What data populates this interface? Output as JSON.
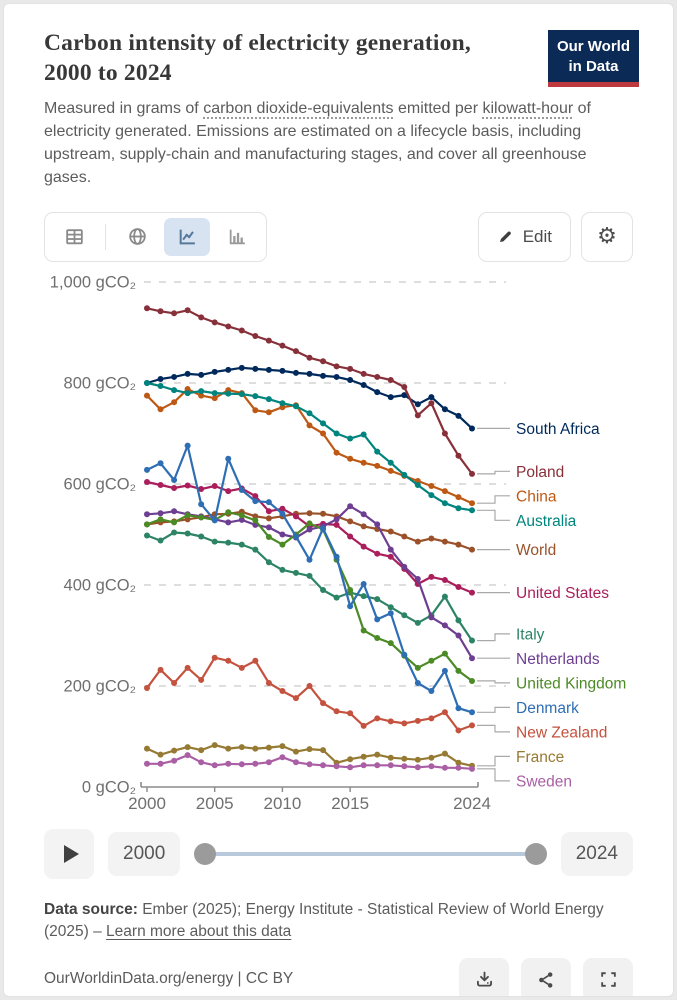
{
  "header": {
    "title": "Carbon intensity of electricity generation, 2000 to 2024",
    "subtitle_parts": [
      {
        "text": "Measured in grams of ",
        "dotted": false
      },
      {
        "text": "carbon dioxide-equivalents",
        "dotted": true
      },
      {
        "text": " emitted per ",
        "dotted": false
      },
      {
        "text": "kilowatt-hour",
        "dotted": true
      },
      {
        "text": " of electricity generated. Emissions are estimated on a lifecycle basis, including upstream, supply-chain and manufacturing stages, and cover all greenhouse gases.",
        "dotted": false
      }
    ],
    "logo": {
      "line1": "Our World",
      "line2": "in Data",
      "bg_color": "#0b2a56",
      "accent_color": "#bf3a3e"
    }
  },
  "toolbar": {
    "tabs": [
      {
        "name": "table",
        "icon": "table-icon",
        "selected": false
      },
      {
        "name": "map",
        "icon": "globe-icon",
        "selected": false
      },
      {
        "name": "line-chart",
        "icon": "line-chart-icon",
        "selected": true
      },
      {
        "name": "bar-chart",
        "icon": "bar-chart-icon",
        "selected": false
      }
    ],
    "selected_bg": "#d7e3f1",
    "edit_label": "Edit"
  },
  "chart_data": {
    "type": "line",
    "title": "Carbon intensity of electricity generation",
    "unit": "gCO2 per kilowatt-hour",
    "xlim": [
      2000,
      2024
    ],
    "ylim": [
      0,
      1000
    ],
    "grid": true,
    "legend_position": "right-end-labels",
    "y_ticks": [
      {
        "value": 0,
        "label": "0 gCO₂"
      },
      {
        "value": 200,
        "label": "200 gCO₂"
      },
      {
        "value": 400,
        "label": "400 gCO₂"
      },
      {
        "value": 600,
        "label": "600 gCO₂"
      },
      {
        "value": 800,
        "label": "800 gCO₂"
      },
      {
        "value": 1000,
        "label": "1,000 gCO₂"
      }
    ],
    "x_ticks": [
      {
        "year": 2000,
        "label": "2000",
        "tick": true
      },
      {
        "year": 2005,
        "label": "2005",
        "tick": true
      },
      {
        "year": 2010,
        "label": "2010",
        "tick": true
      },
      {
        "year": 2015,
        "label": "2015",
        "tick": true
      },
      {
        "year": 2024,
        "label": "2024",
        "tick": false
      }
    ],
    "years": [
      2000,
      2001,
      2002,
      2003,
      2004,
      2005,
      2006,
      2007,
      2008,
      2009,
      2010,
      2011,
      2012,
      2013,
      2014,
      2015,
      2016,
      2017,
      2018,
      2019,
      2020,
      2021,
      2022,
      2023,
      2024
    ],
    "series": [
      {
        "name": "South Africa",
        "color": "#00295B",
        "values": [
          800,
          808,
          812,
          818,
          816,
          822,
          826,
          830,
          828,
          826,
          824,
          820,
          818,
          814,
          812,
          806,
          796,
          782,
          772,
          776,
          758,
          772,
          748,
          735,
          710
        ]
      },
      {
        "name": "Poland",
        "color": "#883039",
        "values": [
          948,
          942,
          938,
          944,
          930,
          920,
          912,
          904,
          893,
          884,
          874,
          863,
          850,
          843,
          833,
          828,
          818,
          812,
          806,
          792,
          736,
          760,
          700,
          656,
          620
        ]
      },
      {
        "name": "China",
        "color": "#BE5915",
        "values": [
          775,
          748,
          762,
          788,
          775,
          770,
          786,
          780,
          746,
          742,
          752,
          756,
          716,
          700,
          662,
          650,
          642,
          636,
          626,
          616,
          606,
          596,
          586,
          574,
          562
        ]
      },
      {
        "name": "Australia",
        "color": "#00847E",
        "values": [
          800,
          794,
          786,
          780,
          784,
          780,
          779,
          778,
          774,
          768,
          760,
          754,
          740,
          720,
          700,
          690,
          698,
          664,
          642,
          618,
          598,
          578,
          562,
          552,
          548
        ]
      },
      {
        "name": "World",
        "color": "#9A5129",
        "values": [
          520,
          524,
          526,
          530,
          534,
          540,
          541,
          545,
          536,
          532,
          536,
          541,
          542,
          541,
          536,
          526,
          516,
          511,
          506,
          496,
          486,
          492,
          486,
          480,
          470
        ]
      },
      {
        "name": "United States",
        "color": "#A91E5B",
        "values": [
          604,
          598,
          592,
          597,
          590,
          596,
          586,
          591,
          576,
          546,
          551,
          536,
          516,
          521,
          519,
          496,
          476,
          462,
          456,
          432,
          402,
          416,
          410,
          396,
          385
        ]
      },
      {
        "name": "Italy",
        "color": "#2C8465",
        "values": [
          498,
          488,
          504,
          502,
          496,
          486,
          484,
          480,
          470,
          445,
          430,
          424,
          418,
          390,
          375,
          385,
          378,
          372,
          356,
          340,
          325,
          340,
          377,
          330,
          290
        ]
      },
      {
        "name": "Netherlands",
        "color": "#6D3E91",
        "values": [
          540,
          542,
          546,
          540,
          536,
          530,
          524,
          529,
          519,
          514,
          500,
          494,
          510,
          516,
          530,
          556,
          540,
          520,
          470,
          436,
          412,
          336,
          320,
          300,
          255
        ]
      },
      {
        "name": "United Kingdom",
        "color": "#4C8A26",
        "values": [
          520,
          530,
          524,
          538,
          534,
          529,
          544,
          538,
          528,
          495,
          480,
          500,
          522,
          510,
          450,
          390,
          310,
          295,
          285,
          260,
          236,
          250,
          264,
          230,
          210
        ]
      },
      {
        "name": "Denmark",
        "color": "#2E6EB5",
        "values": [
          628,
          641,
          608,
          676,
          560,
          528,
          650,
          588,
          566,
          564,
          541,
          496,
          450,
          512,
          456,
          358,
          402,
          332,
          344,
          262,
          206,
          190,
          230,
          156,
          148
        ]
      },
      {
        "name": "New Zealand",
        "color": "#C4523E",
        "values": [
          196,
          232,
          206,
          236,
          212,
          256,
          250,
          236,
          250,
          206,
          190,
          176,
          200,
          166,
          150,
          146,
          121,
          136,
          130,
          126,
          131,
          136,
          148,
          112,
          122
        ]
      },
      {
        "name": "France",
        "color": "#967A33",
        "values": [
          76,
          64,
          72,
          79,
          73,
          83,
          76,
          79,
          76,
          78,
          81,
          70,
          75,
          73,
          48,
          55,
          60,
          64,
          58,
          56,
          54,
          58,
          66,
          48,
          42
        ]
      },
      {
        "name": "Sweden",
        "color": "#AA5FA5",
        "values": [
          46,
          46,
          52,
          63,
          49,
          43,
          46,
          45,
          46,
          49,
          59,
          49,
          45,
          43,
          41,
          39,
          43,
          43,
          43,
          41,
          39,
          41,
          38,
          38,
          36
        ]
      }
    ]
  },
  "timeline": {
    "start_year": "2000",
    "end_year": "2024"
  },
  "footer": {
    "source_prefix": "Data source:",
    "source_text": " Ember (2025); Energy Institute - Statistical Review of World Energy (2025) – ",
    "source_link": "Learn more about this data",
    "citation": "OurWorldinData.org/energy | CC BY",
    "action_icons": [
      "download-icon",
      "share-icon",
      "fullscreen-icon"
    ]
  }
}
